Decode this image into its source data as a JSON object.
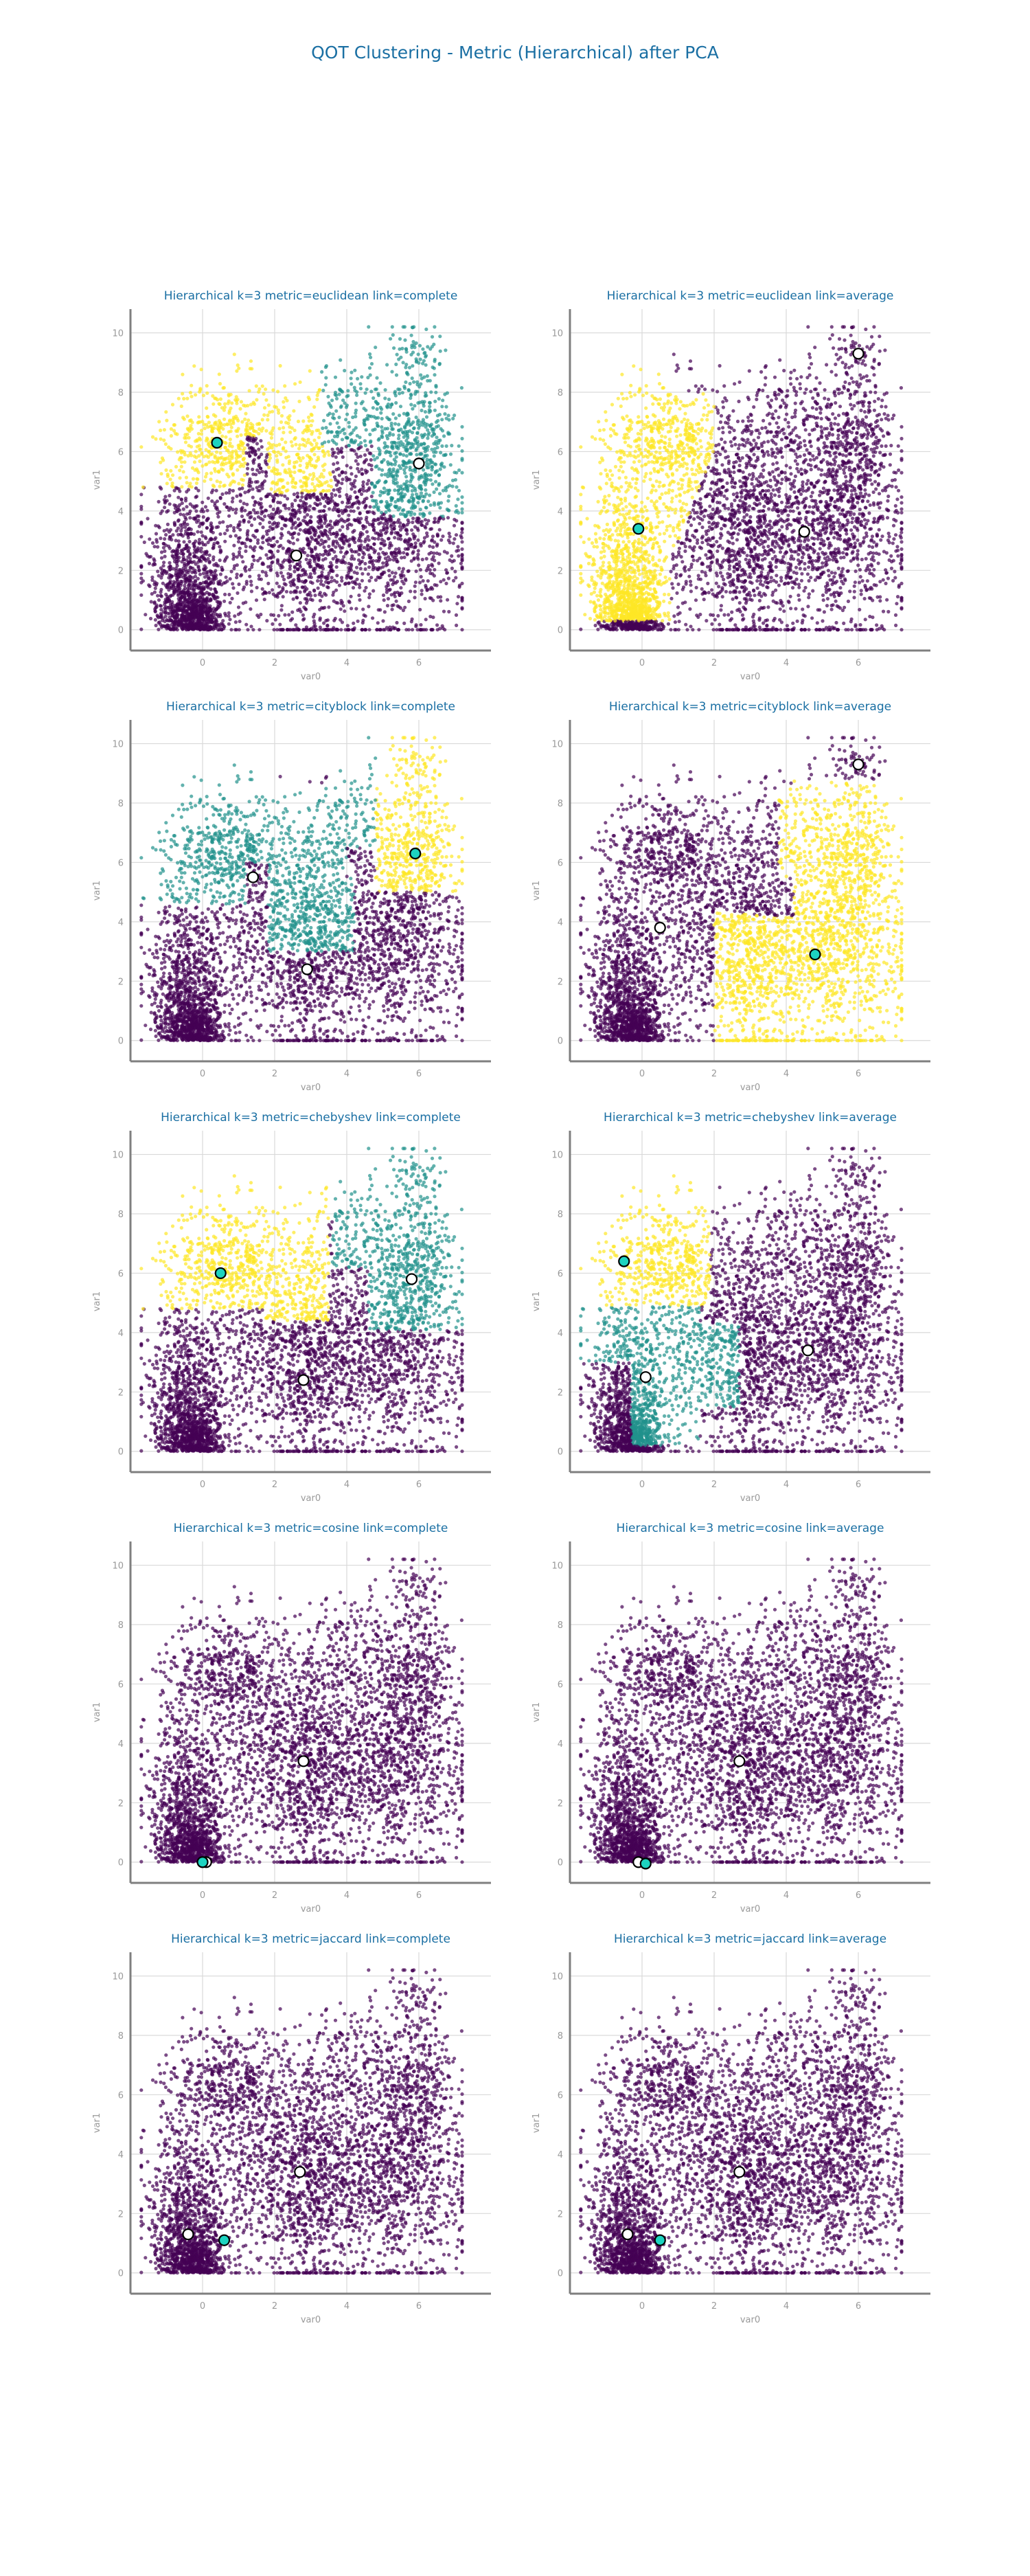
{
  "figure_title": "QOT Clustering - Metric (Hierarchical) after PCA",
  "colors": {
    "cluster_0": "#440154",
    "cluster_1": "#21918c",
    "cluster_2": "#fde725",
    "centroid_highlight": "#1dd3c0",
    "centroid_plain": "#ffffff",
    "title": "#1a6fa3",
    "axis": "#7f7f7f",
    "tick_label": "#999999",
    "grid": "#d9d9d9"
  },
  "chart_data": [
    {
      "type": "scatter",
      "title": "Hierarchical k=3 metric=euclidean link=complete",
      "xlabel": "var0",
      "ylabel": "var1",
      "xlim": [
        -2,
        8
      ],
      "ylim": [
        -0.7,
        10.8
      ],
      "xticks": [
        0,
        2,
        4,
        6
      ],
      "yticks": [
        0,
        2,
        4,
        6,
        8,
        10
      ],
      "grid": true,
      "assignment": "euclid_complete",
      "centroids": [
        {
          "x": 2.6,
          "y": 2.5,
          "highlight": false
        },
        {
          "x": 6.0,
          "y": 5.6,
          "highlight": false
        },
        {
          "x": 0.4,
          "y": 6.3,
          "highlight": true
        }
      ]
    },
    {
      "type": "scatter",
      "title": "Hierarchical k=3 metric=euclidean link=average",
      "xlabel": "var0",
      "ylabel": "var1",
      "xlim": [
        -2,
        8
      ],
      "ylim": [
        -0.7,
        10.8
      ],
      "xticks": [
        0,
        2,
        4,
        6
      ],
      "yticks": [
        0,
        2,
        4,
        6,
        8,
        10
      ],
      "grid": true,
      "assignment": "euclid_average",
      "centroids": [
        {
          "x": 4.5,
          "y": 3.3,
          "highlight": false
        },
        {
          "x": 6.0,
          "y": 9.3,
          "highlight": false
        },
        {
          "x": -0.1,
          "y": 3.4,
          "highlight": true
        }
      ]
    },
    {
      "type": "scatter",
      "title": "Hierarchical k=3 metric=cityblock link=complete",
      "xlabel": "var0",
      "ylabel": "var1",
      "xlim": [
        -2,
        8
      ],
      "ylim": [
        -0.7,
        10.8
      ],
      "xticks": [
        0,
        2,
        4,
        6
      ],
      "yticks": [
        0,
        2,
        4,
        6,
        8,
        10
      ],
      "grid": true,
      "assignment": "city_complete",
      "centroids": [
        {
          "x": 2.9,
          "y": 2.4,
          "highlight": false
        },
        {
          "x": 1.4,
          "y": 5.5,
          "highlight": false
        },
        {
          "x": 5.9,
          "y": 6.3,
          "highlight": true
        }
      ]
    },
    {
      "type": "scatter",
      "title": "Hierarchical k=3 metric=cityblock link=average",
      "xlabel": "var0",
      "ylabel": "var1",
      "xlim": [
        -2,
        8
      ],
      "ylim": [
        -0.7,
        10.8
      ],
      "xticks": [
        0,
        2,
        4,
        6
      ],
      "yticks": [
        0,
        2,
        4,
        6,
        8,
        10
      ],
      "grid": true,
      "assignment": "city_average",
      "centroids": [
        {
          "x": 0.5,
          "y": 3.8,
          "highlight": false
        },
        {
          "x": 6.0,
          "y": 9.3,
          "highlight": false
        },
        {
          "x": 4.8,
          "y": 2.9,
          "highlight": true
        }
      ]
    },
    {
      "type": "scatter",
      "title": "Hierarchical k=3 metric=chebyshev link=complete",
      "xlabel": "var0",
      "ylabel": "var1",
      "xlim": [
        -2,
        8
      ],
      "ylim": [
        -0.7,
        10.8
      ],
      "xticks": [
        0,
        2,
        4,
        6
      ],
      "yticks": [
        0,
        2,
        4,
        6,
        8,
        10
      ],
      "grid": true,
      "assignment": "cheb_complete",
      "centroids": [
        {
          "x": 2.8,
          "y": 2.4,
          "highlight": false
        },
        {
          "x": 5.8,
          "y": 5.8,
          "highlight": false
        },
        {
          "x": 0.5,
          "y": 6.0,
          "highlight": true
        }
      ]
    },
    {
      "type": "scatter",
      "title": "Hierarchical k=3 metric=chebyshev link=average",
      "xlabel": "var0",
      "ylabel": "var1",
      "xlim": [
        -2,
        8
      ],
      "ylim": [
        -0.7,
        10.8
      ],
      "xticks": [
        0,
        2,
        4,
        6
      ],
      "yticks": [
        0,
        2,
        4,
        6,
        8,
        10
      ],
      "grid": true,
      "assignment": "cheb_average",
      "centroids": [
        {
          "x": 4.6,
          "y": 3.4,
          "highlight": false
        },
        {
          "x": 0.1,
          "y": 2.5,
          "highlight": false
        },
        {
          "x": -0.5,
          "y": 6.4,
          "highlight": true
        }
      ]
    },
    {
      "type": "scatter",
      "title": "Hierarchical k=3 metric=cosine link=complete",
      "xlabel": "var0",
      "ylabel": "var1",
      "xlim": [
        -2,
        8
      ],
      "ylim": [
        -0.7,
        10.8
      ],
      "xticks": [
        0,
        2,
        4,
        6
      ],
      "yticks": [
        0,
        2,
        4,
        6,
        8,
        10
      ],
      "grid": true,
      "assignment": "all_zero",
      "centroids": [
        {
          "x": 2.8,
          "y": 3.4,
          "highlight": false
        },
        {
          "x": 0.1,
          "y": 0.0,
          "highlight": false
        },
        {
          "x": 0.0,
          "y": 0.0,
          "highlight": true
        }
      ]
    },
    {
      "type": "scatter",
      "title": "Hierarchical k=3 metric=cosine link=average",
      "xlabel": "var0",
      "ylabel": "var1",
      "xlim": [
        -2,
        8
      ],
      "ylim": [
        -0.7,
        10.8
      ],
      "xticks": [
        0,
        2,
        4,
        6
      ],
      "yticks": [
        0,
        2,
        4,
        6,
        8,
        10
      ],
      "grid": true,
      "assignment": "all_zero",
      "centroids": [
        {
          "x": 2.7,
          "y": 3.4,
          "highlight": false
        },
        {
          "x": -0.1,
          "y": 0.0,
          "highlight": false
        },
        {
          "x": 0.1,
          "y": -0.05,
          "highlight": true
        }
      ]
    },
    {
      "type": "scatter",
      "title": "Hierarchical k=3 metric=jaccard link=complete",
      "xlabel": "var0",
      "ylabel": "var1",
      "xlim": [
        -2,
        8
      ],
      "ylim": [
        -0.7,
        10.8
      ],
      "xticks": [
        0,
        2,
        4,
        6
      ],
      "yticks": [
        0,
        2,
        4,
        6,
        8,
        10
      ],
      "grid": true,
      "assignment": "all_zero",
      "centroids": [
        {
          "x": 2.7,
          "y": 3.4,
          "highlight": false
        },
        {
          "x": -0.4,
          "y": 1.3,
          "highlight": false
        },
        {
          "x": 0.6,
          "y": 1.1,
          "highlight": true
        }
      ]
    },
    {
      "type": "scatter",
      "title": "Hierarchical k=3 metric=jaccard link=average",
      "xlabel": "var0",
      "ylabel": "var1",
      "xlim": [
        -2,
        8
      ],
      "ylim": [
        -0.7,
        10.8
      ],
      "xticks": [
        0,
        2,
        4,
        6
      ],
      "yticks": [
        0,
        2,
        4,
        6,
        8,
        10
      ],
      "grid": true,
      "assignment": "all_zero",
      "centroids": [
        {
          "x": 2.7,
          "y": 3.4,
          "highlight": false
        },
        {
          "x": -0.4,
          "y": 1.3,
          "highlight": false
        },
        {
          "x": 0.5,
          "y": 1.1,
          "highlight": true
        }
      ]
    }
  ]
}
